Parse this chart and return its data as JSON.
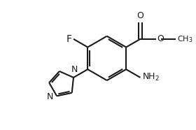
{
  "bg_color": "#ffffff",
  "line_color": "#1a1a1a",
  "line_width": 1.5,
  "figsize": [
    2.8,
    1.86
  ],
  "dpi": 100,
  "font_size": 9,
  "xlim": [
    -1,
    9
  ],
  "ylim": [
    -0.5,
    6.2
  ]
}
